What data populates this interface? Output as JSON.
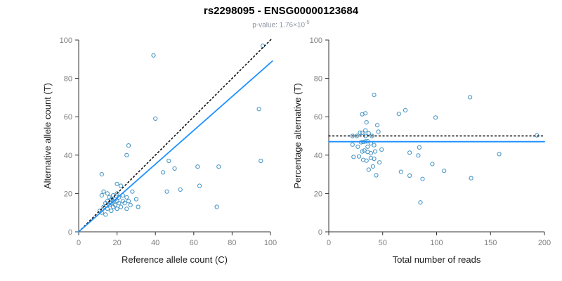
{
  "header": {
    "title": "rs2298095 - ENSG00000123684",
    "pvalue_label": "p-value: 1.76×10",
    "pvalue_exponent": "-5"
  },
  "colors": {
    "point": "#4393C3",
    "regression_line": "#1E90FF",
    "reference_line": "#000000",
    "axis": "#333333",
    "tick_label": "#808080",
    "subtitle": "#8b93a0"
  },
  "chart_data": [
    {
      "type": "scatter",
      "title": "",
      "xlabel": "Reference allele count (C)",
      "ylabel": "Alternative allele count (T)",
      "xlim": [
        0,
        100
      ],
      "ylim": [
        0,
        100
      ],
      "xticks": [
        0,
        20,
        40,
        60,
        80,
        100
      ],
      "yticks": [
        0,
        20,
        40,
        60,
        80,
        100
      ],
      "grid": false,
      "legend": "none",
      "points": [
        [
          11,
          11
        ],
        [
          12,
          10
        ],
        [
          12,
          19
        ],
        [
          12,
          30
        ],
        [
          13,
          21
        ],
        [
          13,
          13
        ],
        [
          14,
          15
        ],
        [
          14,
          9
        ],
        [
          15,
          20
        ],
        [
          15,
          16
        ],
        [
          15,
          12
        ],
        [
          16,
          18
        ],
        [
          16,
          14
        ],
        [
          17,
          17
        ],
        [
          17,
          15
        ],
        [
          17,
          11
        ],
        [
          18,
          19
        ],
        [
          18,
          16
        ],
        [
          18,
          13
        ],
        [
          19,
          17
        ],
        [
          19,
          14
        ],
        [
          20,
          20
        ],
        [
          20,
          16
        ],
        [
          20,
          12
        ],
        [
          20,
          25
        ],
        [
          21,
          18
        ],
        [
          21,
          15
        ],
        [
          22,
          24
        ],
        [
          22,
          13
        ],
        [
          23,
          16
        ],
        [
          23,
          19
        ],
        [
          24,
          15
        ],
        [
          25,
          18
        ],
        [
          25,
          12
        ],
        [
          25,
          40
        ],
        [
          26,
          45
        ],
        [
          26,
          16
        ],
        [
          27,
          14
        ],
        [
          28,
          21
        ],
        [
          30,
          17
        ],
        [
          31,
          13
        ],
        [
          39,
          92
        ],
        [
          40,
          59
        ],
        [
          44,
          31
        ],
        [
          46,
          21
        ],
        [
          47,
          37
        ],
        [
          50,
          33
        ],
        [
          53,
          22
        ],
        [
          62,
          34
        ],
        [
          63,
          24
        ],
        [
          72,
          13
        ],
        [
          73,
          34
        ],
        [
          94,
          64
        ],
        [
          95,
          37
        ],
        [
          96,
          97
        ]
      ],
      "lines": [
        {
          "name": "identity-line",
          "style": "dotted",
          "color": "#000000",
          "points": [
            [
              0,
              0
            ],
            [
              101,
              101
            ]
          ]
        },
        {
          "name": "regression-line",
          "style": "solid",
          "color": "#1E90FF",
          "points": [
            [
              0,
              0
            ],
            [
              101,
              89
            ]
          ]
        }
      ]
    },
    {
      "type": "scatter",
      "title": "",
      "xlabel": "Total number of reads",
      "ylabel": "Percentage alternative (T)",
      "xlim": [
        0,
        200
      ],
      "ylim": [
        0,
        100
      ],
      "xticks": [
        0,
        50,
        100,
        150,
        200
      ],
      "yticks": [
        0,
        20,
        40,
        60,
        80,
        100
      ],
      "grid": false,
      "legend": "none",
      "points": [
        [
          22,
          50
        ],
        [
          22,
          45.5
        ],
        [
          31,
          61.3
        ],
        [
          42,
          71.4
        ],
        [
          34,
          61.8
        ],
        [
          26,
          50
        ],
        [
          29,
          51.7
        ],
        [
          23,
          39.1
        ],
        [
          35,
          57.1
        ],
        [
          31,
          51.6
        ],
        [
          27,
          44.4
        ],
        [
          34,
          52.9
        ],
        [
          30,
          46.7
        ],
        [
          34,
          50
        ],
        [
          32,
          46.9
        ],
        [
          28,
          39.3
        ],
        [
          37,
          51.4
        ],
        [
          34,
          47.1
        ],
        [
          31,
          41.9
        ],
        [
          36,
          47.2
        ],
        [
          33,
          42.4
        ],
        [
          40,
          50
        ],
        [
          36,
          44.4
        ],
        [
          32,
          37.5
        ],
        [
          45,
          55.6
        ],
        [
          39,
          46.2
        ],
        [
          36,
          41.7
        ],
        [
          46,
          52.2
        ],
        [
          35,
          37.1
        ],
        [
          39,
          41
        ],
        [
          42,
          45.2
        ],
        [
          39,
          38.5
        ],
        [
          43,
          41.9
        ],
        [
          37,
          32.4
        ],
        [
          65,
          61.5
        ],
        [
          71,
          63.4
        ],
        [
          42,
          38.1
        ],
        [
          41,
          34.1
        ],
        [
          49,
          42.9
        ],
        [
          47,
          36.2
        ],
        [
          44,
          29.5
        ],
        [
          131,
          70.2
        ],
        [
          99,
          59.6
        ],
        [
          75,
          41.3
        ],
        [
          67,
          31.3
        ],
        [
          84,
          44
        ],
        [
          83,
          39.8
        ],
        [
          75,
          29.3
        ],
        [
          96,
          35.4
        ],
        [
          87,
          27.6
        ],
        [
          85,
          15.3
        ],
        [
          107,
          31.8
        ],
        [
          158,
          40.5
        ],
        [
          132,
          28
        ],
        [
          193,
          50.3
        ]
      ],
      "lines": [
        {
          "name": "expected-percentage-line",
          "style": "dotted",
          "color": "#000000",
          "points": [
            [
              0,
              50
            ],
            [
              200,
              50
            ]
          ]
        },
        {
          "name": "mean-percentage-line",
          "style": "solid",
          "color": "#1E90FF",
          "points": [
            [
              0,
              47
            ],
            [
              200,
              47
            ]
          ]
        }
      ]
    }
  ]
}
